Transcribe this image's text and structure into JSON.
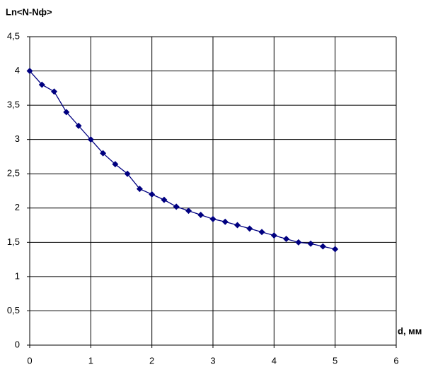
{
  "chart_data": {
    "type": "line",
    "ylabel": "Ln<N-Nф>",
    "xlabel": "d, мм",
    "x": [
      0,
      0.2,
      0.4,
      0.6,
      0.8,
      1.0,
      1.2,
      1.4,
      1.6,
      1.8,
      2.0,
      2.2,
      2.4,
      2.6,
      2.8,
      3.0,
      3.2,
      3.4,
      3.6,
      3.8,
      4.0,
      4.2,
      4.4,
      4.6,
      4.8,
      5.0
    ],
    "values": [
      4.0,
      3.8,
      3.7,
      3.4,
      3.2,
      3.0,
      2.8,
      2.64,
      2.5,
      2.28,
      2.2,
      2.12,
      2.02,
      1.96,
      1.9,
      1.84,
      1.8,
      1.75,
      1.7,
      1.65,
      1.6,
      1.55,
      1.5,
      1.48,
      1.44,
      1.4
    ],
    "color": "#000080",
    "xlim": [
      0,
      6
    ],
    "xticks": [
      0,
      1,
      2,
      3,
      4,
      5,
      6
    ],
    "ylim": [
      0,
      4.5
    ],
    "yticks": [
      0,
      {
        "value": 0.5,
        "label": "0,5"
      },
      1,
      {
        "value": 1.5,
        "label": "1,5"
      },
      2,
      {
        "value": 2.5,
        "label": "2,5"
      },
      3,
      {
        "value": 3.5,
        "label": "3,5"
      },
      4,
      {
        "value": 4.5,
        "label": "4,5"
      }
    ],
    "grid": true
  }
}
